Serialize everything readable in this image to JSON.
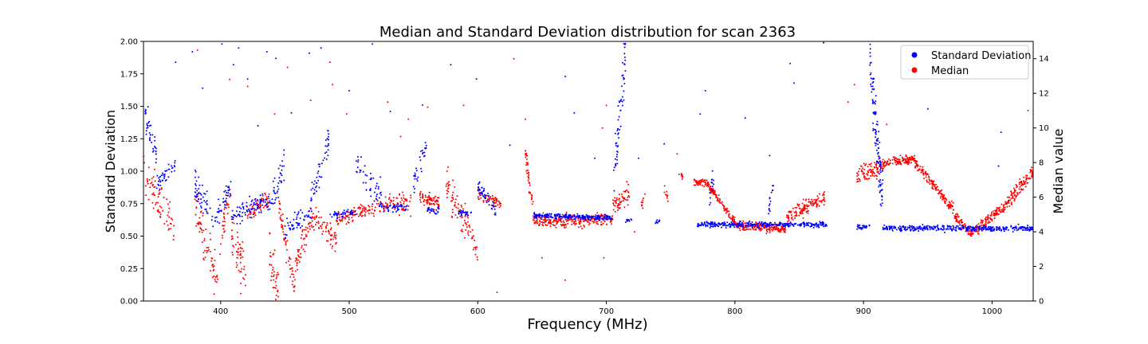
{
  "chart_data": {
    "type": "scatter",
    "title": "Median and Standard Deviation distribution for scan 2363",
    "xlabel": "Frequency (MHz)",
    "ylabel_left": "Standard Deviation",
    "ylabel_right": "Median value",
    "xlim": [
      340,
      1032
    ],
    "ylim_left": [
      0,
      2.0
    ],
    "ylim_right": [
      0,
      15
    ],
    "x_ticks": [
      "400",
      "500",
      "600",
      "700",
      "800",
      "900",
      "1000"
    ],
    "y_left_ticks": [
      "0.00",
      "0.25",
      "0.50",
      "0.75",
      "1.00",
      "1.25",
      "1.50",
      "1.75",
      "2.00"
    ],
    "y_right_ticks": [
      "0",
      "2",
      "4",
      "6",
      "8",
      "10",
      "12",
      "14"
    ],
    "legend": {
      "position": "top-right"
    },
    "series": [
      {
        "name": "Standard Deviation",
        "axis": "left",
        "color": "#0000ff",
        "segments": [
          {
            "x0": 340,
            "x1": 350,
            "y0": 1.45,
            "y1": 1.15,
            "spread": 0.12,
            "n": 40
          },
          {
            "x0": 350,
            "x1": 365,
            "y0": 0.9,
            "y1": 1.05,
            "spread": 0.08,
            "n": 40
          },
          {
            "x0": 380,
            "x1": 395,
            "y0": 0.9,
            "y1": 0.6,
            "spread": 0.12,
            "n": 50
          },
          {
            "x0": 395,
            "x1": 408,
            "y0": 0.62,
            "y1": 0.88,
            "spread": 0.08,
            "n": 40
          },
          {
            "x0": 408,
            "x1": 440,
            "y0": 0.65,
            "y1": 0.78,
            "spread": 0.08,
            "n": 90
          },
          {
            "x0": 440,
            "x1": 450,
            "y0": 0.8,
            "y1": 1.05,
            "spread": 0.12,
            "n": 35
          },
          {
            "x0": 450,
            "x1": 470,
            "y0": 0.55,
            "y1": 0.68,
            "spread": 0.06,
            "n": 50
          },
          {
            "x0": 470,
            "x1": 485,
            "y0": 0.75,
            "y1": 1.25,
            "spread": 0.12,
            "n": 50
          },
          {
            "x0": 485,
            "x1": 505,
            "y0": 0.66,
            "y1": 0.68,
            "spread": 0.03,
            "n": 40
          },
          {
            "x0": 505,
            "x1": 525,
            "y0": 1.05,
            "y1": 0.8,
            "spread": 0.1,
            "n": 50
          },
          {
            "x0": 525,
            "x1": 545,
            "y0": 0.72,
            "y1": 0.72,
            "spread": 0.03,
            "n": 40
          },
          {
            "x0": 550,
            "x1": 560,
            "y0": 0.9,
            "y1": 1.2,
            "spread": 0.1,
            "n": 30
          },
          {
            "x0": 560,
            "x1": 570,
            "y0": 0.7,
            "y1": 0.7,
            "spread": 0.03,
            "n": 25
          },
          {
            "x0": 585,
            "x1": 595,
            "y0": 0.68,
            "y1": 0.68,
            "spread": 0.02,
            "n": 25
          },
          {
            "x0": 600,
            "x1": 615,
            "y0": 0.88,
            "y1": 0.68,
            "spread": 0.04,
            "n": 40
          },
          {
            "x0": 643,
            "x1": 705,
            "y0": 0.66,
            "y1": 0.64,
            "spread": 0.02,
            "n": 240
          },
          {
            "x0": 705,
            "x1": 715,
            "y0": 0.9,
            "y1": 1.9,
            "spread": 0.2,
            "n": 60
          },
          {
            "x0": 715,
            "x1": 720,
            "y0": 0.62,
            "y1": 0.62,
            "spread": 0.02,
            "n": 12
          },
          {
            "x0": 738,
            "x1": 742,
            "y0": 0.61,
            "y1": 0.61,
            "spread": 0.02,
            "n": 8
          },
          {
            "x0": 770,
            "x1": 872,
            "y0": 0.59,
            "y1": 0.59,
            "spread": 0.02,
            "n": 320
          },
          {
            "x0": 780,
            "x1": 785,
            "y0": 0.8,
            "y1": 1.0,
            "spread": 0.1,
            "n": 14
          },
          {
            "x0": 826,
            "x1": 830,
            "y0": 0.7,
            "y1": 0.92,
            "spread": 0.08,
            "n": 14
          },
          {
            "x0": 895,
            "x1": 905,
            "y0": 0.57,
            "y1": 0.57,
            "spread": 0.02,
            "n": 25
          },
          {
            "x0": 905,
            "x1": 915,
            "y0": 1.85,
            "y1": 0.75,
            "spread": 0.25,
            "n": 110
          },
          {
            "x0": 915,
            "x1": 1032,
            "y0": 0.56,
            "y1": 0.56,
            "spread": 0.02,
            "n": 380
          }
        ],
        "scatter": [
          {
            "x": 365,
            "y": 1.84
          },
          {
            "x": 378,
            "y": 1.92
          },
          {
            "x": 386,
            "y": 1.64
          },
          {
            "x": 401,
            "y": 1.98
          },
          {
            "x": 410,
            "y": 1.82
          },
          {
            "x": 414,
            "y": 1.95
          },
          {
            "x": 421,
            "y": 1.71
          },
          {
            "x": 429,
            "y": 1.35
          },
          {
            "x": 436,
            "y": 1.92
          },
          {
            "x": 443,
            "y": 1.87
          },
          {
            "x": 455,
            "y": 1.45
          },
          {
            "x": 469,
            "y": 1.91
          },
          {
            "x": 478,
            "y": 1.95
          },
          {
            "x": 500,
            "y": 1.62
          },
          {
            "x": 518,
            "y": 1.98
          },
          {
            "x": 532,
            "y": 1.46
          },
          {
            "x": 557,
            "y": 1.51
          },
          {
            "x": 579,
            "y": 1.82
          },
          {
            "x": 599,
            "y": 1.71
          },
          {
            "x": 625,
            "y": 1.2
          },
          {
            "x": 668,
            "y": 1.73
          },
          {
            "x": 675,
            "y": 1.45
          },
          {
            "x": 691,
            "y": 1.1
          },
          {
            "x": 725,
            "y": 1.1
          },
          {
            "x": 745,
            "y": 1.21
          },
          {
            "x": 773,
            "y": 1.44
          },
          {
            "x": 777,
            "y": 1.62
          },
          {
            "x": 808,
            "y": 1.41
          },
          {
            "x": 827,
            "y": 1.12
          },
          {
            "x": 843,
            "y": 1.83
          },
          {
            "x": 846,
            "y": 1.68
          },
          {
            "x": 869,
            "y": 1.99
          },
          {
            "x": 950,
            "y": 1.48
          },
          {
            "x": 1007,
            "y": 1.3
          },
          {
            "x": 1005,
            "y": 1.04
          },
          {
            "x": 1028,
            "y": 1.86
          }
        ]
      },
      {
        "name": "Median",
        "axis": "right",
        "color": "#ff0000",
        "segments": [
          {
            "x0": 340,
            "x1": 365,
            "y0": 7.5,
            "y1": 4.0,
            "spread": 1.2,
            "n": 70
          },
          {
            "x0": 380,
            "x1": 398,
            "y0": 5.5,
            "y1": 1.0,
            "spread": 1.2,
            "n": 70
          },
          {
            "x0": 398,
            "x1": 408,
            "y0": 3.0,
            "y1": 6.5,
            "spread": 0.8,
            "n": 30
          },
          {
            "x0": 408,
            "x1": 420,
            "y0": 4.0,
            "y1": 1.5,
            "spread": 1.5,
            "n": 55
          },
          {
            "x0": 420,
            "x1": 438,
            "y0": 5.0,
            "y1": 6.0,
            "spread": 0.5,
            "n": 60
          },
          {
            "x0": 438,
            "x1": 445,
            "y0": 2.5,
            "y1": 0.5,
            "spread": 1.5,
            "n": 35
          },
          {
            "x0": 445,
            "x1": 458,
            "y0": 5.5,
            "y1": 0.6,
            "spread": 0.8,
            "n": 55
          },
          {
            "x0": 458,
            "x1": 470,
            "y0": 2.0,
            "y1": 4.5,
            "spread": 0.8,
            "n": 45
          },
          {
            "x0": 470,
            "x1": 490,
            "y0": 5.0,
            "y1": 3.5,
            "spread": 0.6,
            "n": 70
          },
          {
            "x0": 490,
            "x1": 530,
            "y0": 4.7,
            "y1": 5.6,
            "spread": 0.4,
            "n": 120
          },
          {
            "x0": 530,
            "x1": 548,
            "y0": 6.0,
            "y1": 5.5,
            "spread": 0.6,
            "n": 50
          },
          {
            "x0": 555,
            "x1": 570,
            "y0": 6.0,
            "y1": 5.6,
            "spread": 0.4,
            "n": 70
          },
          {
            "x0": 575,
            "x1": 590,
            "y0": 7.0,
            "y1": 4.0,
            "spread": 1.0,
            "n": 55
          },
          {
            "x0": 590,
            "x1": 600,
            "y0": 5.0,
            "y1": 2.5,
            "spread": 0.8,
            "n": 35
          },
          {
            "x0": 600,
            "x1": 618,
            "y0": 6.2,
            "y1": 5.6,
            "spread": 0.3,
            "n": 60
          },
          {
            "x0": 637,
            "x1": 643,
            "y0": 8.5,
            "y1": 5.5,
            "spread": 0.7,
            "n": 40
          },
          {
            "x0": 643,
            "x1": 705,
            "y0": 4.6,
            "y1": 4.7,
            "spread": 0.35,
            "n": 260
          },
          {
            "x0": 705,
            "x1": 718,
            "y0": 5.6,
            "y1": 6.2,
            "spread": 0.7,
            "n": 55
          },
          {
            "x0": 727,
            "x1": 730,
            "y0": 5.5,
            "y1": 6.0,
            "spread": 0.3,
            "n": 10
          },
          {
            "x0": 745,
            "x1": 748,
            "y0": 6.5,
            "y1": 5.8,
            "spread": 0.3,
            "n": 10
          },
          {
            "x0": 756,
            "x1": 760,
            "y0": 7.4,
            "y1": 7.2,
            "spread": 0.2,
            "n": 10
          },
          {
            "x0": 768,
            "x1": 780,
            "y0": 6.9,
            "y1": 6.8,
            "spread": 0.2,
            "n": 60
          },
          {
            "x0": 780,
            "x1": 800,
            "y0": 6.6,
            "y1": 4.6,
            "spread": 0.25,
            "n": 100
          },
          {
            "x0": 800,
            "x1": 840,
            "y0": 4.4,
            "y1": 4.2,
            "spread": 0.25,
            "n": 200
          },
          {
            "x0": 840,
            "x1": 870,
            "y0": 4.8,
            "y1": 6.0,
            "spread": 0.45,
            "n": 130
          },
          {
            "x0": 895,
            "x1": 915,
            "y0": 7.2,
            "y1": 7.8,
            "spread": 0.5,
            "n": 90
          },
          {
            "x0": 915,
            "x1": 940,
            "y0": 8.0,
            "y1": 8.2,
            "spread": 0.25,
            "n": 120
          },
          {
            "x0": 940,
            "x1": 970,
            "y0": 8.0,
            "y1": 5.3,
            "spread": 0.3,
            "n": 140
          },
          {
            "x0": 970,
            "x1": 985,
            "y0": 5.0,
            "y1": 3.8,
            "spread": 0.25,
            "n": 70
          },
          {
            "x0": 985,
            "x1": 1010,
            "y0": 4.0,
            "y1": 5.5,
            "spread": 0.3,
            "n": 120
          },
          {
            "x0": 1010,
            "x1": 1032,
            "y0": 5.5,
            "y1": 7.5,
            "spread": 0.4,
            "n": 110
          }
        ],
        "scatter": [
          {
            "x": 382,
            "y": 14.5
          },
          {
            "x": 407,
            "y": 12.8
          },
          {
            "x": 421,
            "y": 12.4
          },
          {
            "x": 442,
            "y": 10.8
          },
          {
            "x": 452,
            "y": 13.5
          },
          {
            "x": 470,
            "y": 11.6
          },
          {
            "x": 485,
            "y": 13.8
          },
          {
            "x": 487,
            "y": 12.5
          },
          {
            "x": 498,
            "y": 10.8
          },
          {
            "x": 530,
            "y": 11.5
          },
          {
            "x": 540,
            "y": 9.5
          },
          {
            "x": 546,
            "y": 10.5
          },
          {
            "x": 561,
            "y": 11.2
          },
          {
            "x": 589,
            "y": 11.3
          },
          {
            "x": 628,
            "y": 14.0
          },
          {
            "x": 637,
            "y": 10.5
          },
          {
            "x": 697,
            "y": 10.0
          },
          {
            "x": 700,
            "y": 11.3
          },
          {
            "x": 722,
            "y": 4.0
          },
          {
            "x": 755,
            "y": 8.5
          },
          {
            "x": 888,
            "y": 11.5
          },
          {
            "x": 893,
            "y": 12.5
          },
          {
            "x": 918,
            "y": 10.2
          },
          {
            "x": 1028,
            "y": 11.0
          },
          {
            "x": 668,
            "y": 1.2
          },
          {
            "x": 650,
            "y": 2.5
          },
          {
            "x": 698,
            "y": 2.5
          },
          {
            "x": 615,
            "y": 0.5
          }
        ]
      }
    ]
  }
}
